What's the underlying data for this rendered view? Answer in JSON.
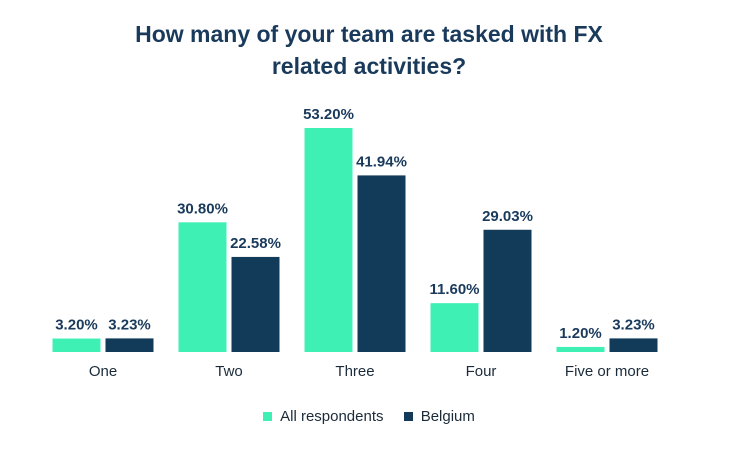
{
  "chart_data": {
    "type": "bar",
    "title_lines": [
      "How many of your team are tasked with FX",
      "related activities?"
    ],
    "categories": [
      "One",
      "Two",
      "Three",
      "Four",
      "Five or more"
    ],
    "series": [
      {
        "name": "All respondents",
        "color": "#3ff0b5",
        "values": [
          3.2,
          30.8,
          53.2,
          11.6,
          1.2
        ],
        "labels": [
          "3.20%",
          "30.80%",
          "53.20%",
          "11.60%",
          "1.20%"
        ]
      },
      {
        "name": "Belgium",
        "color": "#123a59",
        "values": [
          3.23,
          22.58,
          41.94,
          29.03,
          3.23
        ],
        "labels": [
          "3.23%",
          "22.58%",
          "41.94%",
          "29.03%",
          "3.23%"
        ]
      }
    ],
    "ylim": [
      0,
      53.2
    ],
    "legend_position": "bottom",
    "grid": false
  }
}
